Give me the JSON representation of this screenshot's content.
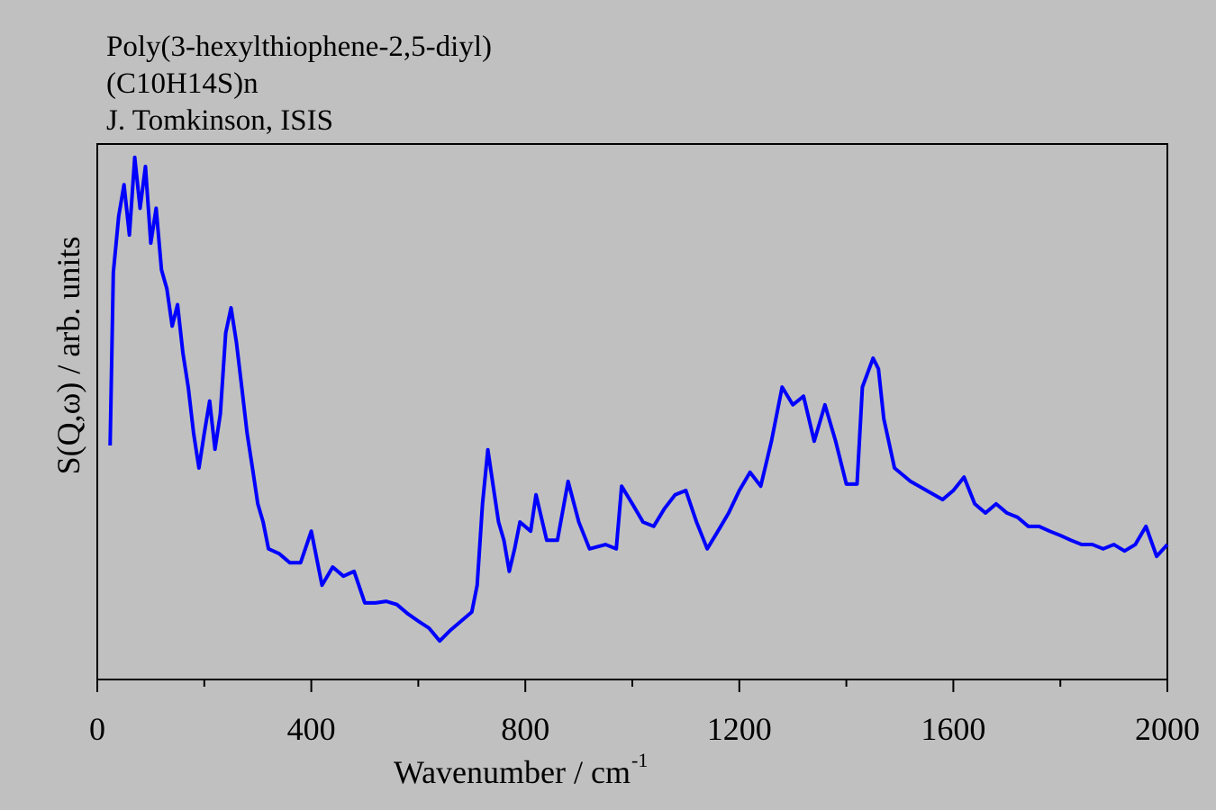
{
  "chart_data": {
    "type": "line",
    "annotations": [
      "Poly(3-hexylthiophene-2,5-diyl)",
      "(C10H14S)n",
      "J. Tomkinson, ISIS"
    ],
    "xlabel": "Wavenumber / cm",
    "xlabel_superscript": "-1",
    "ylabel": "S(Q,ω) / arb. units",
    "xlim": [
      0,
      2000
    ],
    "xticks": [
      0,
      400,
      800,
      1200,
      1600,
      2000
    ],
    "xminor_ticks": [
      200,
      600,
      1000,
      1400,
      1800
    ],
    "ylim": [
      0,
      100
    ],
    "series": [
      {
        "color": "#0000ff",
        "x": [
          24,
          30,
          40,
          50,
          60,
          70,
          80,
          90,
          100,
          110,
          120,
          130,
          140,
          150,
          160,
          170,
          180,
          190,
          200,
          210,
          220,
          230,
          240,
          250,
          260,
          270,
          280,
          290,
          300,
          310,
          320,
          340,
          360,
          380,
          400,
          420,
          440,
          460,
          480,
          500,
          520,
          540,
          560,
          580,
          600,
          620,
          640,
          660,
          680,
          700,
          710,
          720,
          730,
          740,
          750,
          760,
          770,
          780,
          790,
          810,
          820,
          840,
          860,
          880,
          900,
          920,
          950,
          970,
          980,
          1000,
          1020,
          1040,
          1060,
          1080,
          1100,
          1120,
          1140,
          1160,
          1180,
          1200,
          1220,
          1240,
          1260,
          1280,
          1300,
          1320,
          1340,
          1360,
          1380,
          1400,
          1420,
          1430,
          1450,
          1460,
          1470,
          1490,
          1520,
          1550,
          1580,
          1600,
          1620,
          1640,
          1660,
          1680,
          1700,
          1720,
          1740,
          1760,
          1780,
          1800,
          1820,
          1840,
          1860,
          1880,
          1900,
          1920,
          1940,
          1960,
          1980,
          2000
        ],
        "values": [
          43.7,
          76,
          86.5,
          92.4,
          83,
          97.5,
          88,
          95.8,
          81.5,
          88,
          76.5,
          73,
          66,
          70,
          61,
          54.6,
          46,
          39.5,
          46,
          52,
          43,
          49.6,
          64.7,
          69.4,
          63,
          54.6,
          46,
          39.5,
          32.8,
          29.4,
          24.4,
          23.5,
          21.8,
          21.8,
          27.7,
          17.6,
          21,
          19.3,
          20.2,
          14.3,
          14.3,
          14.6,
          14,
          12.3,
          10.9,
          9.6,
          7.2,
          9.2,
          10.9,
          12.6,
          17.6,
          32.8,
          42.9,
          36.1,
          29.4,
          26,
          20.2,
          24.4,
          29.4,
          27.7,
          34.5,
          26,
          26,
          37,
          29.4,
          24.4,
          25.2,
          24.4,
          36.1,
          32.8,
          29.4,
          28.6,
          31.9,
          34.5,
          35.3,
          29.4,
          24.4,
          27.7,
          31.1,
          35.3,
          38.7,
          36.1,
          44.5,
          54.6,
          51.3,
          52.9,
          44.5,
          51.3,
          44.5,
          36.5,
          36.5,
          54.6,
          60,
          58,
          48.7,
          39.5,
          37,
          35.3,
          33.6,
          35.3,
          37.8,
          32.8,
          31.1,
          32.8,
          31.1,
          30.3,
          28.6,
          28.6,
          27.7,
          26.9,
          26,
          25.2,
          25.2,
          24.4,
          25.2,
          24,
          25.2,
          28.6,
          23,
          25.2
        ]
      }
    ]
  }
}
